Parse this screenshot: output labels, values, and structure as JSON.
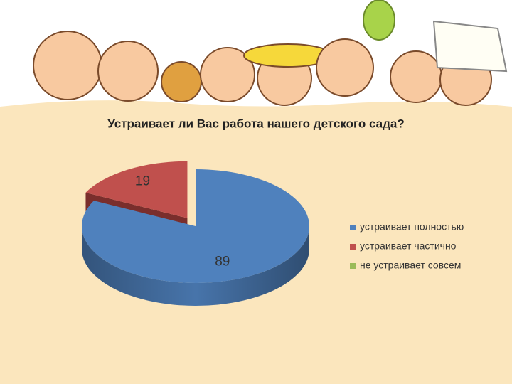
{
  "chart_data": {
    "type": "pie",
    "title": "Устраивает ли Вас работа нашего детского сада?",
    "categories": [
      "устраивает полностью",
      "устраивает частично",
      "не устраивает совсем"
    ],
    "values": [
      89,
      19,
      0
    ],
    "colors": [
      "#4f81bd",
      "#c0504d",
      "#9bbb59"
    ],
    "legend": "right"
  }
}
